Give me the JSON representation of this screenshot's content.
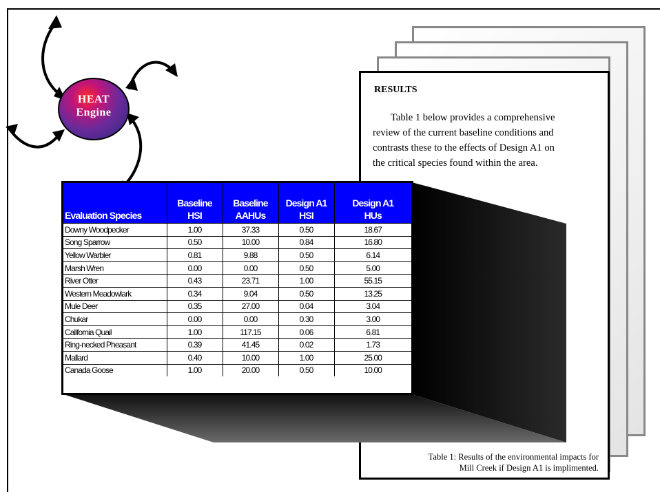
{
  "document": {
    "heading": "RESULTS",
    "body_lines": [
      "Table 1 below provides a comprehensive",
      "review of the current baseline conditions and",
      "contrasts these to the effects of Design A1 on",
      "the critical species found within the area."
    ],
    "caption_lines": [
      "Table 1: Results of the environmental impacts for",
      "Mill Creek if Design A1 is implimented."
    ]
  },
  "heat_engine": {
    "label_line1": "HEAT",
    "label_line2": "Engine"
  },
  "table": {
    "headers": [
      [
        "Evaluation Species"
      ],
      [
        "Baseline",
        "HSI"
      ],
      [
        "Baseline",
        "AAHUs"
      ],
      [
        "Design A1",
        "HSI"
      ],
      [
        "Design A1",
        "HUs"
      ]
    ],
    "rows": [
      [
        "Downy Woodpecker",
        "1.00",
        "37.33",
        "0.50",
        "18.67"
      ],
      [
        "Song Sparrow",
        "0.50",
        "10.00",
        "0.84",
        "16.80"
      ],
      [
        "Yellow Warbler",
        "0.81",
        "9.88",
        "0.50",
        "6.14"
      ],
      [
        "Marsh Wren",
        "0.00",
        "0.00",
        "0.50",
        "5.00"
      ],
      [
        "River Otter",
        "0.43",
        "23.71",
        "1.00",
        "55.15"
      ],
      [
        "Western Meadowlark",
        "0.34",
        "9.04",
        "0.50",
        "13.25"
      ],
      [
        "Mule Deer",
        "0.35",
        "27.00",
        "0.04",
        "3.04"
      ],
      [
        "Chukar",
        "0.00",
        "0.00",
        "0.30",
        "3.00"
      ],
      [
        "California Quail",
        "1.00",
        "117.15",
        "0.06",
        "6.81"
      ],
      [
        "Ring-necked Pheasant",
        "0.39",
        "41.45",
        "0.02",
        "1.73"
      ],
      [
        "Mallard",
        "0.40",
        "10.00",
        "1.00",
        "25.00"
      ],
      [
        "Canada Goose",
        "1.00",
        "20.00",
        "0.50",
        "10.00"
      ]
    ]
  },
  "colors": {
    "header_bg": "#0000ff",
    "box_shadow": "#000000"
  },
  "icons": {
    "arrows": "curved-double-arrow-icon"
  }
}
